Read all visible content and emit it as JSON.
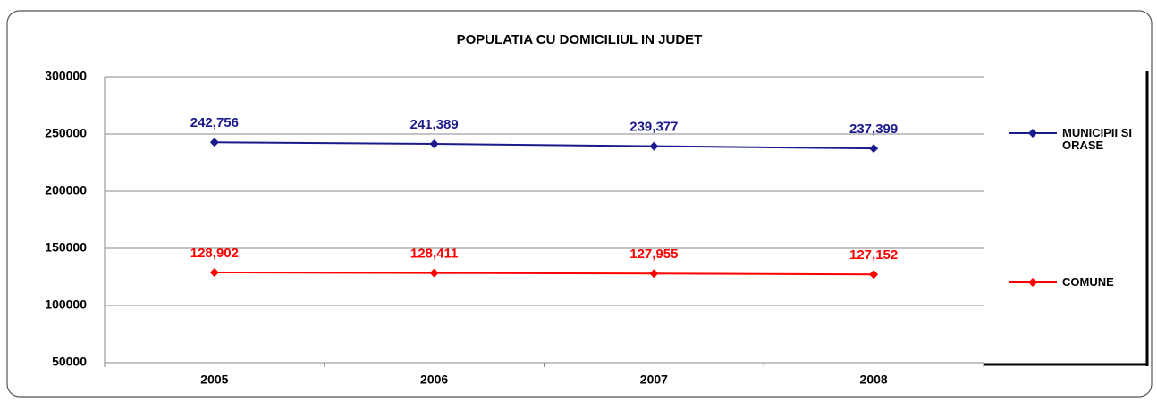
{
  "chart_data": {
    "type": "line",
    "title": "POPULATIA CU DOMICILIUL IN JUDET",
    "categories": [
      "2005",
      "2006",
      "2007",
      "2008"
    ],
    "series": [
      {
        "name": "MUNICIPII SI ORASE",
        "color": "#1a1a8c",
        "values": [
          242756,
          241389,
          239377,
          237399
        ],
        "value_labels": [
          "242,756",
          "241,389",
          "239,377",
          "237,399"
        ]
      },
      {
        "name": "COMUNE",
        "color": "#ff0000",
        "values": [
          128902,
          128411,
          127955,
          127152
        ],
        "value_labels": [
          "128,902",
          "128,411",
          "127,955",
          "127,152"
        ]
      }
    ],
    "ylim": [
      50000,
      300000
    ],
    "yticks": [
      50000,
      100000,
      150000,
      200000,
      250000,
      300000
    ],
    "grid": true,
    "legend": "right"
  }
}
